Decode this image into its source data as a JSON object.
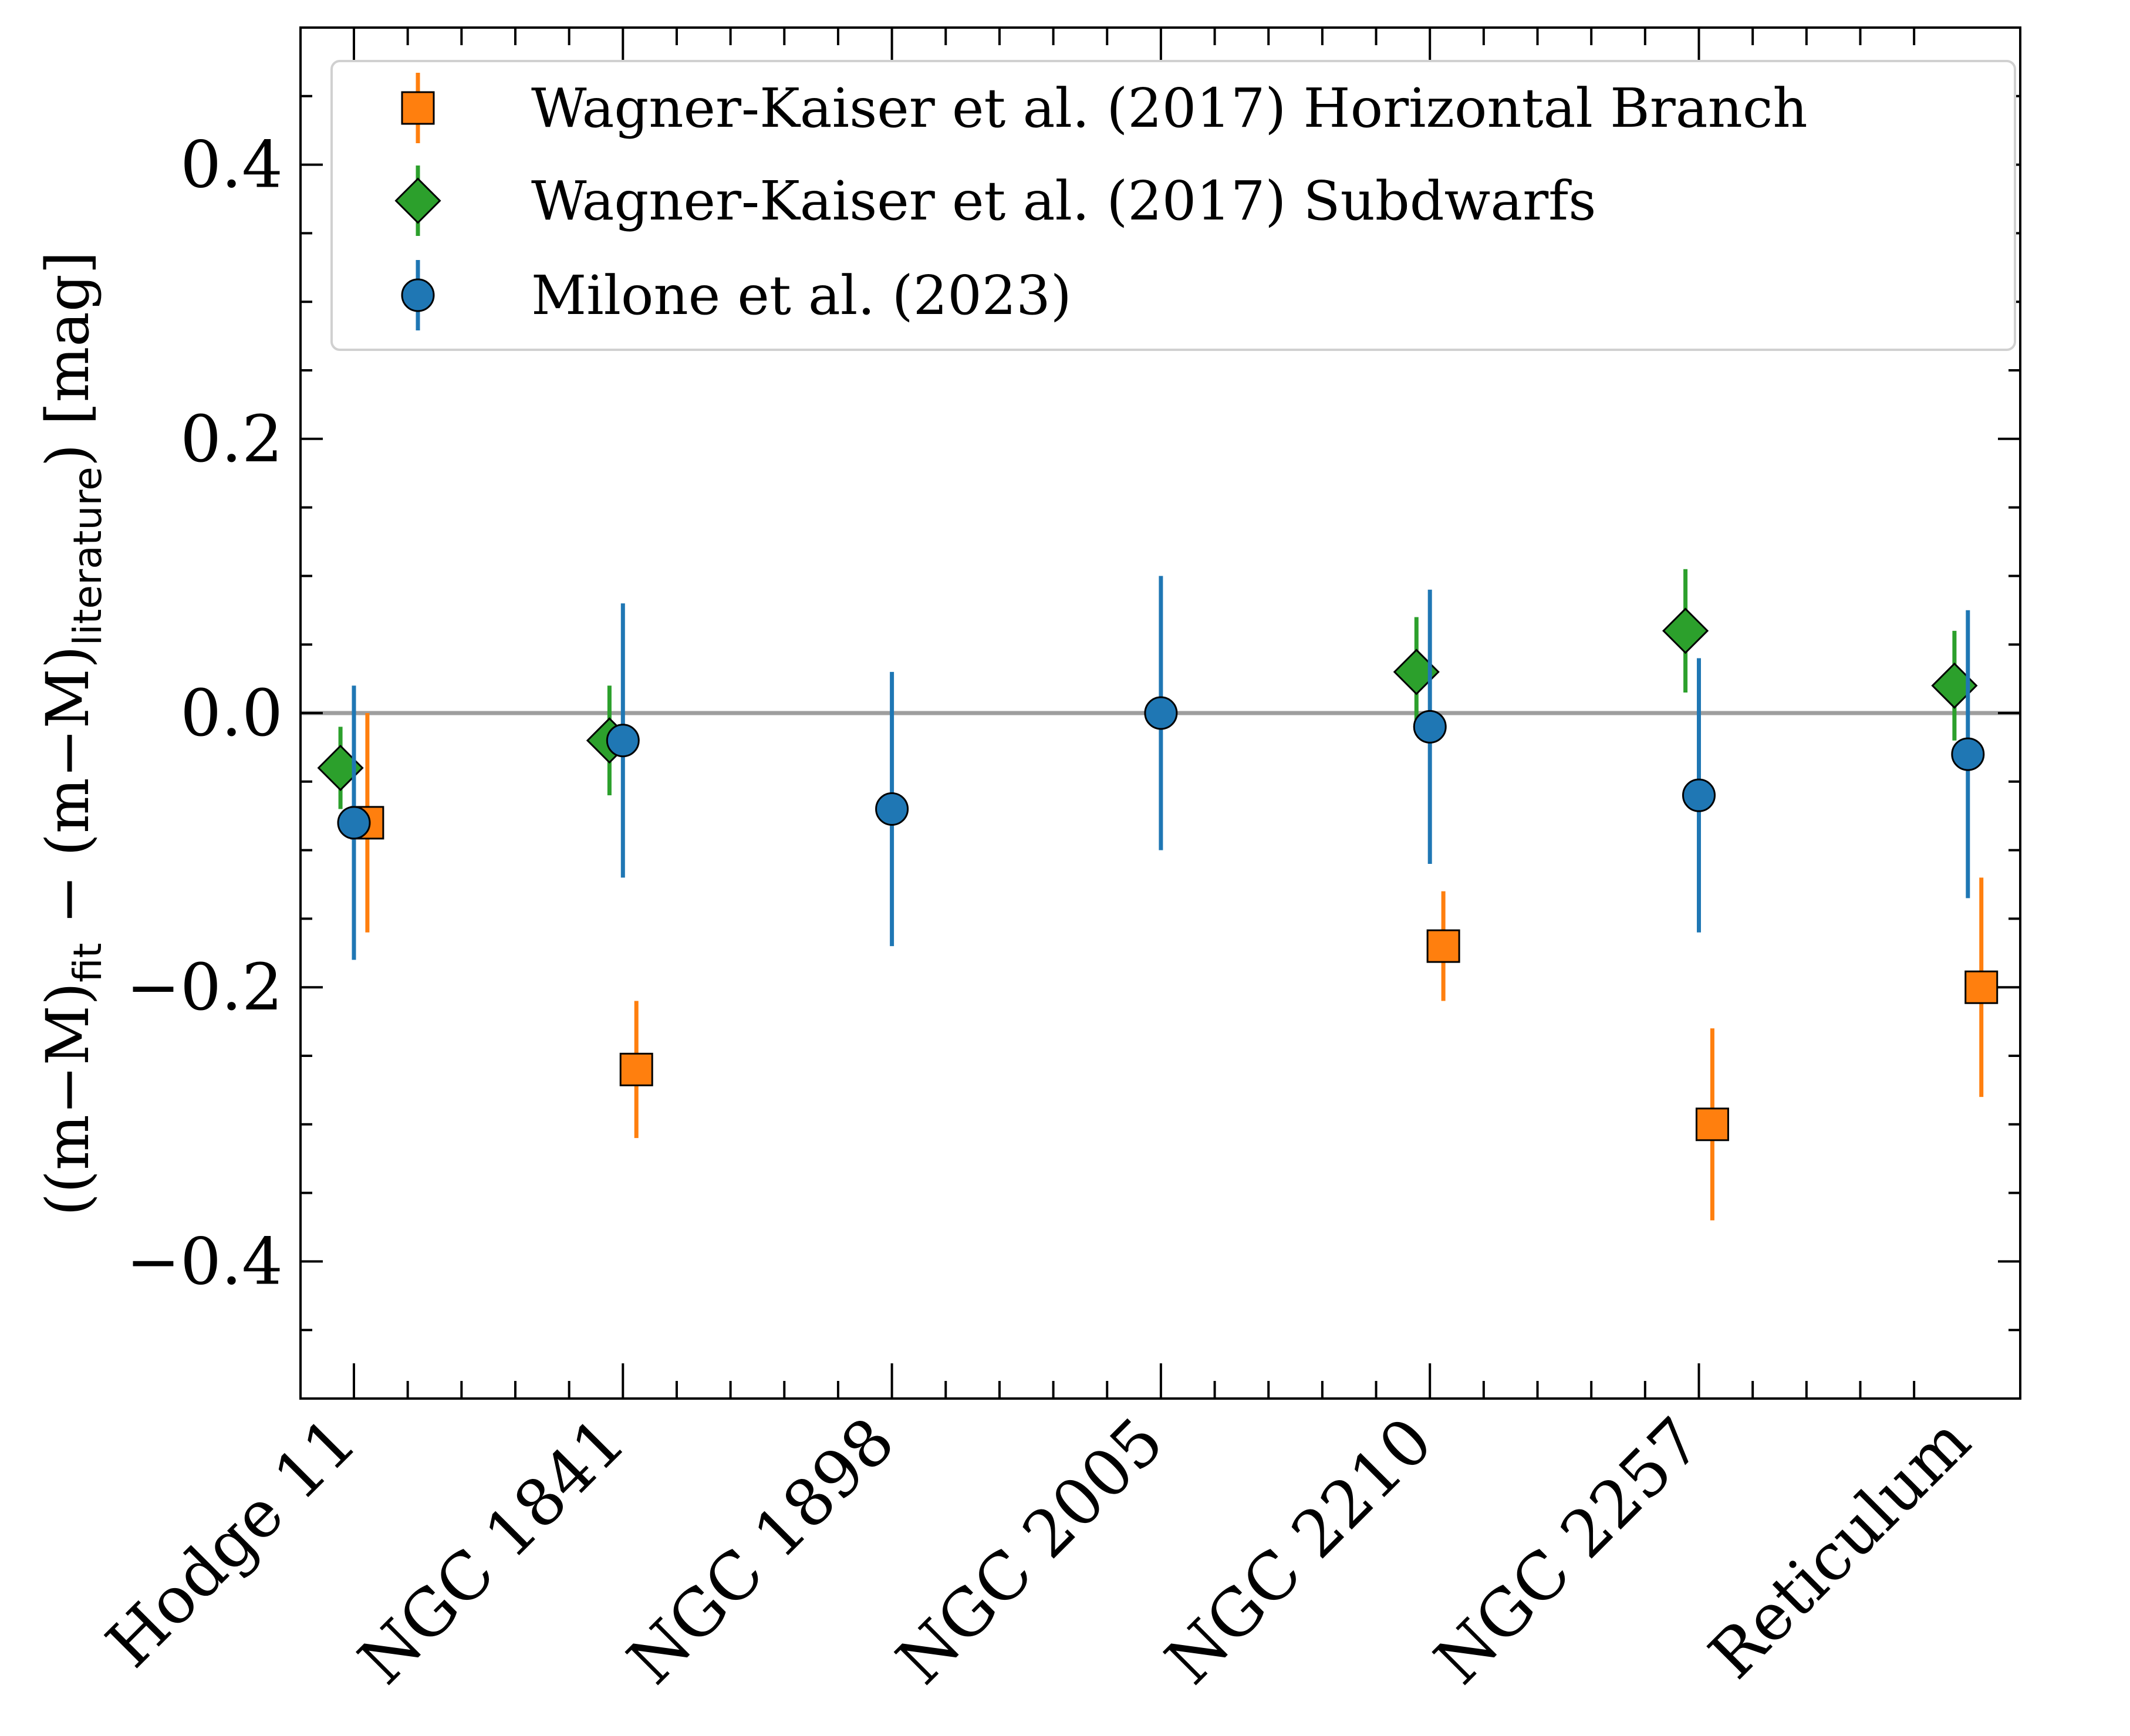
{
  "chart_data": {
    "type": "scatter",
    "title": "",
    "xlabel": "",
    "ylabel": {
      "prefix": "((m−M)",
      "sub1": "fit",
      "middle": " − (m−M)",
      "sub2": "literature",
      "suffix": ") [mag]"
    },
    "ylim": [
      -0.5,
      0.5
    ],
    "yticks": [
      -0.4,
      -0.2,
      0.0,
      0.2,
      0.4
    ],
    "ytick_labels": [
      "−0.4",
      "−0.2",
      "0.0",
      "0.2",
      "0.4"
    ],
    "categories": [
      "Hodge 11",
      "NGC 1841",
      "NGC 1898",
      "NGC 2005",
      "NGC 2210",
      "NGC 2257",
      "Reticulum"
    ],
    "reference_line": 0.0,
    "grid": false,
    "legend_position": "top",
    "series": [
      {
        "name": "Wagner-Kaiser et al. (2017) Horizontal Branch",
        "marker": "square",
        "color": "#ff7f0e",
        "offset": 0.05,
        "points": [
          {
            "category": "Hodge 11",
            "y": -0.08,
            "err": 0.08
          },
          {
            "category": "NGC 1841",
            "y": -0.26,
            "err": 0.05
          },
          {
            "category": "NGC 2210",
            "y": -0.17,
            "err": 0.04
          },
          {
            "category": "NGC 2257",
            "y": -0.3,
            "err": 0.07
          },
          {
            "category": "Reticulum",
            "y": -0.2,
            "err": 0.08
          }
        ]
      },
      {
        "name": "Wagner-Kaiser et al. (2017) Subdwarfs",
        "marker": "diamond",
        "color": "#2ca02c",
        "offset": -0.05,
        "points": [
          {
            "category": "Hodge 11",
            "y": -0.04,
            "err": 0.03
          },
          {
            "category": "NGC 1841",
            "y": -0.02,
            "err": 0.04
          },
          {
            "category": "NGC 2210",
            "y": 0.03,
            "err": 0.04
          },
          {
            "category": "NGC 2257",
            "y": 0.06,
            "err": 0.045
          },
          {
            "category": "Reticulum",
            "y": 0.02,
            "err": 0.04
          }
        ]
      },
      {
        "name": "Milone et al. (2023)",
        "marker": "circle",
        "color": "#1f77b4",
        "offset": 0.0,
        "points": [
          {
            "category": "Hodge 11",
            "y": -0.08,
            "err": 0.1
          },
          {
            "category": "NGC 1841",
            "y": -0.02,
            "err": 0.1
          },
          {
            "category": "NGC 1898",
            "y": -0.07,
            "err": 0.1
          },
          {
            "category": "NGC 2005",
            "y": 0.0,
            "err": 0.1
          },
          {
            "category": "NGC 2210",
            "y": -0.01,
            "err": 0.1
          },
          {
            "category": "NGC 2257",
            "y": -0.06,
            "err": 0.1
          },
          {
            "category": "Reticulum",
            "y": -0.03,
            "err": 0.105
          }
        ]
      }
    ]
  }
}
